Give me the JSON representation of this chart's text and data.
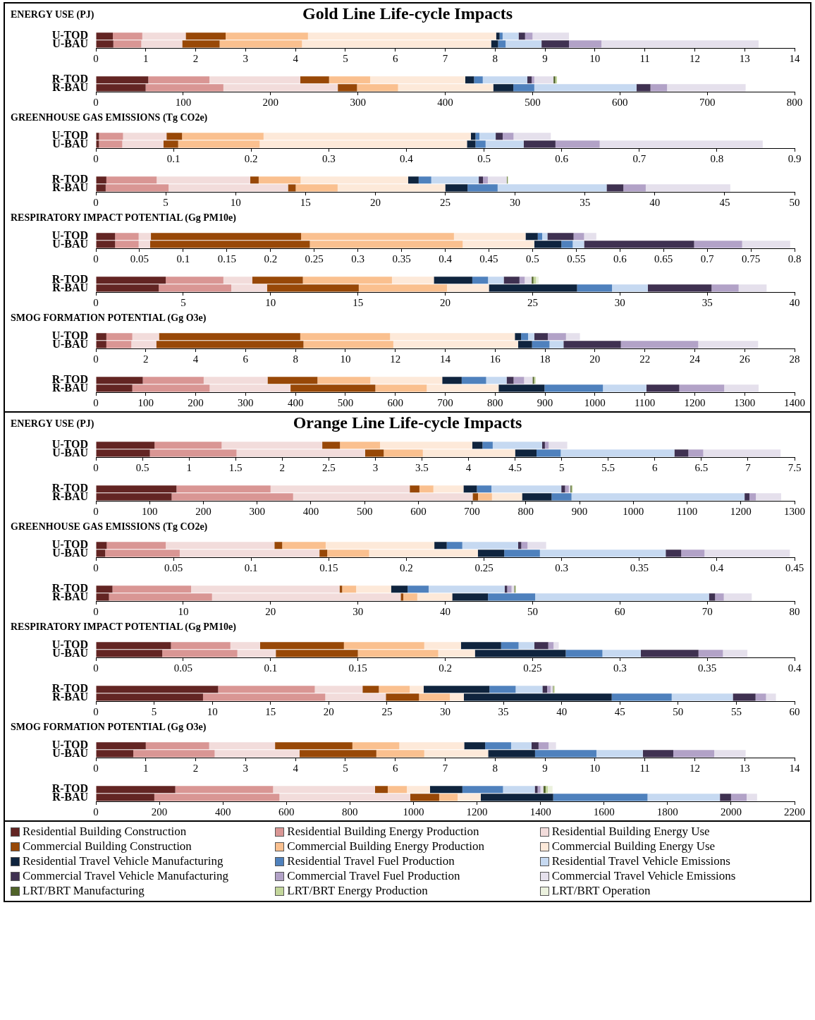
{
  "chart_data": [
    {
      "type": "bar",
      "orientation": "horizontal",
      "stacked": true,
      "title": "Gold Line Life-cycle Impacts",
      "subtitle": "ENERGY USE (PJ)",
      "categories": [
        "U-TOD",
        "U-BAU"
      ],
      "xlim": [
        0,
        14
      ],
      "xticks": [
        0,
        1,
        2,
        3,
        4,
        5,
        6,
        7,
        8,
        9,
        10,
        11,
        12,
        13,
        14
      ],
      "series": [
        {
          "color": "#632523",
          "values": [
            0.34,
            0.35
          ]
        },
        {
          "color": "#d99694",
          "values": [
            0.59,
            0.56
          ]
        },
        {
          "color": "#f2dcdb",
          "values": [
            0.87,
            0.82
          ]
        },
        {
          "color": "#984807",
          "values": [
            0.8,
            0.75
          ]
        },
        {
          "color": "#fac08f",
          "values": [
            1.65,
            1.65
          ]
        },
        {
          "color": "#fde9d9",
          "values": [
            3.77,
            3.79
          ]
        },
        {
          "color": "#0f243e",
          "values": [
            0.07,
            0.14
          ]
        },
        {
          "color": "#4f81bd",
          "values": [
            0.06,
            0.15
          ]
        },
        {
          "color": "#c6d9f1",
          "values": [
            0.32,
            0.72
          ]
        },
        {
          "color": "#3f3151",
          "values": [
            0.13,
            0.55
          ]
        },
        {
          "color": "#b2a2c7",
          "values": [
            0.15,
            0.65
          ]
        },
        {
          "color": "#e5e0ec",
          "values": [
            0.73,
            3.15
          ]
        }
      ]
    },
    {
      "type": "bar",
      "orientation": "horizontal",
      "stacked": true,
      "categories": [
        "R-TOD",
        "R-BAU"
      ],
      "xlim": [
        0,
        800
      ],
      "xticks": [
        0,
        100,
        200,
        300,
        400,
        500,
        600,
        700,
        800
      ],
      "series": [
        {
          "color": "#632523",
          "values": [
            60,
            57
          ]
        },
        {
          "color": "#d99694",
          "values": [
            70,
            89
          ]
        },
        {
          "color": "#f2dcdb",
          "values": [
            104,
            131
          ]
        },
        {
          "color": "#984807",
          "values": [
            33,
            22
          ]
        },
        {
          "color": "#fac08f",
          "values": [
            47,
            47
          ]
        },
        {
          "color": "#fde9d9",
          "values": [
            109,
            109
          ]
        },
        {
          "color": "#0f243e",
          "values": [
            10,
            23
          ]
        },
        {
          "color": "#4f81bd",
          "values": [
            10,
            24
          ]
        },
        {
          "color": "#c6d9f1",
          "values": [
            51,
            117
          ]
        },
        {
          "color": "#3f3151",
          "values": [
            5,
            16
          ]
        },
        {
          "color": "#b2a2c7",
          "values": [
            3,
            19
          ]
        },
        {
          "color": "#e5e0ec",
          "values": [
            22,
            90
          ]
        },
        {
          "color": "#4f6228",
          "values": [
            2,
            0
          ]
        },
        {
          "color": "#c3d69b",
          "values": [
            2,
            0
          ]
        }
      ]
    },
    {
      "type": "bar",
      "orientation": "horizontal",
      "stacked": true,
      "title": "GREENHOUSE GAS EMISSIONS (Tg CO2e)",
      "categories": [
        "U-TOD",
        "U-BAU"
      ],
      "xlim": [
        0,
        0.9
      ],
      "xticks": [
        0,
        0.1,
        0.2,
        0.3,
        0.4,
        0.5,
        0.6,
        0.7,
        0.8,
        0.9
      ],
      "series": [
        {
          "color": "#632523",
          "values": [
            0.004,
            0.004
          ]
        },
        {
          "color": "#d99694",
          "values": [
            0.031,
            0.03
          ]
        },
        {
          "color": "#f2dcdb",
          "values": [
            0.056,
            0.053
          ]
        },
        {
          "color": "#984807",
          "values": [
            0.02,
            0.019
          ]
        },
        {
          "color": "#fac08f",
          "values": [
            0.105,
            0.105
          ]
        },
        {
          "color": "#fde9d9",
          "values": [
            0.267,
            0.267
          ]
        },
        {
          "color": "#0f243e",
          "values": [
            0.006,
            0.011
          ]
        },
        {
          "color": "#4f81bd",
          "values": [
            0.005,
            0.013
          ]
        },
        {
          "color": "#c6d9f1",
          "values": [
            0.021,
            0.049
          ]
        },
        {
          "color": "#3f3151",
          "values": [
            0.009,
            0.041
          ]
        },
        {
          "color": "#b2a2c7",
          "values": [
            0.014,
            0.057
          ]
        },
        {
          "color": "#e5e0ec",
          "values": [
            0.048,
            0.21
          ]
        }
      ]
    },
    {
      "type": "bar",
      "orientation": "horizontal",
      "stacked": true,
      "categories": [
        "R-TOD",
        "R-BAU"
      ],
      "xlim": [
        0,
        50
      ],
      "xticks": [
        0,
        5,
        10,
        15,
        20,
        25,
        30,
        35,
        40,
        45,
        50
      ],
      "series": [
        {
          "color": "#632523",
          "values": [
            0.75,
            0.7
          ]
        },
        {
          "color": "#d99694",
          "values": [
            3.6,
            4.5
          ]
        },
        {
          "color": "#f2dcdb",
          "values": [
            6.7,
            8.55
          ]
        },
        {
          "color": "#984807",
          "values": [
            0.6,
            0.55
          ]
        },
        {
          "color": "#fac08f",
          "values": [
            3.0,
            3.0
          ]
        },
        {
          "color": "#fde9d9",
          "values": [
            7.7,
            7.7
          ]
        },
        {
          "color": "#0f243e",
          "values": [
            0.75,
            1.6
          ]
        },
        {
          "color": "#4f81bd",
          "values": [
            0.9,
            2.15
          ]
        },
        {
          "color": "#c6d9f1",
          "values": [
            3.4,
            7.8
          ]
        },
        {
          "color": "#3f3151",
          "values": [
            0.3,
            1.2
          ]
        },
        {
          "color": "#b2a2c7",
          "values": [
            0.35,
            1.6
          ]
        },
        {
          "color": "#e5e0ec",
          "values": [
            1.35,
            6.05
          ]
        },
        {
          "color": "#4f6228",
          "values": [
            0.05,
            0
          ]
        },
        {
          "color": "#c3d69b",
          "values": [
            0.05,
            0
          ]
        }
      ]
    },
    {
      "type": "bar",
      "orientation": "horizontal",
      "stacked": true,
      "title": "RESPIRATORY IMPACT POTENTIAL (Gg PM10e)",
      "categories": [
        "U-TOD",
        "U-BAU"
      ],
      "xlim": [
        0,
        0.8
      ],
      "xticks": [
        0,
        0.05,
        0.1,
        0.15,
        0.2,
        0.25,
        0.3,
        0.35,
        0.4,
        0.45,
        0.5,
        0.55,
        0.6,
        0.65,
        0.7,
        0.75,
        0.8
      ],
      "series": [
        {
          "color": "#632523",
          "values": [
            0.022,
            0.022
          ]
        },
        {
          "color": "#d99694",
          "values": [
            0.027,
            0.027
          ]
        },
        {
          "color": "#f2dcdb",
          "values": [
            0.014,
            0.013
          ]
        },
        {
          "color": "#984807",
          "values": [
            0.172,
            0.183
          ]
        },
        {
          "color": "#fac08f",
          "values": [
            0.175,
            0.175
          ]
        },
        {
          "color": "#fde9d9",
          "values": [
            0.082,
            0.082
          ]
        },
        {
          "color": "#0f243e",
          "values": [
            0.014,
            0.031
          ]
        },
        {
          "color": "#4f81bd",
          "values": [
            0.005,
            0.013
          ]
        },
        {
          "color": "#c6d9f1",
          "values": [
            0.006,
            0.013
          ]
        },
        {
          "color": "#3f3151",
          "values": [
            0.03,
            0.126
          ]
        },
        {
          "color": "#b2a2c7",
          "values": [
            0.012,
            0.055
          ]
        },
        {
          "color": "#e5e0ec",
          "values": [
            0.014,
            0.055
          ]
        }
      ]
    },
    {
      "type": "bar",
      "orientation": "horizontal",
      "stacked": true,
      "categories": [
        "R-TOD",
        "R-BAU"
      ],
      "xlim": [
        0,
        40
      ],
      "xticks": [
        0,
        5,
        10,
        15,
        20,
        25,
        30,
        35,
        40
      ],
      "series": [
        {
          "color": "#632523",
          "values": [
            4.0,
            3.6
          ]
        },
        {
          "color": "#d99694",
          "values": [
            3.3,
            4.15
          ]
        },
        {
          "color": "#f2dcdb",
          "values": [
            1.65,
            2.05
          ]
        },
        {
          "color": "#984807",
          "values": [
            2.9,
            5.25
          ]
        },
        {
          "color": "#fac08f",
          "values": [
            5.1,
            5.05
          ]
        },
        {
          "color": "#fde9d9",
          "values": [
            2.4,
            2.4
          ]
        },
        {
          "color": "#0f243e",
          "values": [
            2.2,
            5.05
          ]
        },
        {
          "color": "#4f81bd",
          "values": [
            0.9,
            2.0
          ]
        },
        {
          "color": "#c6d9f1",
          "values": [
            0.9,
            2.05
          ]
        },
        {
          "color": "#3f3151",
          "values": [
            0.9,
            3.65
          ]
        },
        {
          "color": "#b2a2c7",
          "values": [
            0.3,
            1.55
          ]
        },
        {
          "color": "#e5e0ec",
          "values": [
            0.4,
            1.6
          ]
        },
        {
          "color": "#4f6228",
          "values": [
            0.1,
            0
          ]
        },
        {
          "color": "#c3d69b",
          "values": [
            0.15,
            0
          ]
        },
        {
          "color": "#ebf1de",
          "values": [
            0.15,
            0
          ]
        }
      ]
    },
    {
      "type": "bar",
      "orientation": "horizontal",
      "stacked": true,
      "title": "SMOG FORMATION POTENTIAL (Gg O3e)",
      "categories": [
        "U-TOD",
        "U-BAU"
      ],
      "xlim": [
        0,
        28
      ],
      "xticks": [
        0,
        2,
        4,
        6,
        8,
        10,
        12,
        14,
        16,
        18,
        20,
        22,
        24,
        26,
        28
      ],
      "series": [
        {
          "color": "#632523",
          "values": [
            0.42,
            0.42
          ]
        },
        {
          "color": "#d99694",
          "values": [
            1.04,
            1.0
          ]
        },
        {
          "color": "#f2dcdb",
          "values": [
            1.07,
            1.0
          ]
        },
        {
          "color": "#984807",
          "values": [
            5.66,
            5.9
          ]
        },
        {
          "color": "#fac08f",
          "values": [
            3.6,
            3.6
          ]
        },
        {
          "color": "#fde9d9",
          "values": [
            5.0,
            5.0
          ]
        },
        {
          "color": "#0f243e",
          "values": [
            0.25,
            0.56
          ]
        },
        {
          "color": "#4f81bd",
          "values": [
            0.28,
            0.7
          ]
        },
        {
          "color": "#c6d9f1",
          "values": [
            0.25,
            0.56
          ]
        },
        {
          "color": "#3f3151",
          "values": [
            0.54,
            2.3
          ]
        },
        {
          "color": "#b2a2c7",
          "values": [
            0.73,
            3.1
          ]
        },
        {
          "color": "#e5e0ec",
          "values": [
            0.56,
            2.4
          ]
        }
      ]
    },
    {
      "type": "bar",
      "orientation": "horizontal",
      "stacked": true,
      "categories": [
        "R-TOD",
        "R-BAU"
      ],
      "xlim": [
        0,
        1400
      ],
      "xticks": [
        0,
        100,
        200,
        300,
        400,
        500,
        600,
        700,
        800,
        900,
        1000,
        1100,
        1200,
        1300,
        1400
      ],
      "series": [
        {
          "color": "#632523",
          "values": [
            94,
            73
          ]
        },
        {
          "color": "#d99694",
          "values": [
            122,
            155
          ]
        },
        {
          "color": "#f2dcdb",
          "values": [
            128,
            162
          ]
        },
        {
          "color": "#984807",
          "values": [
            100,
            170
          ]
        },
        {
          "color": "#fac08f",
          "values": [
            106,
            103
          ]
        },
        {
          "color": "#fde9d9",
          "values": [
            144,
            144
          ]
        },
        {
          "color": "#0f243e",
          "values": [
            39,
            92
          ]
        },
        {
          "color": "#4f81bd",
          "values": [
            49,
            117
          ]
        },
        {
          "color": "#c6d9f1",
          "values": [
            41,
            87
          ]
        },
        {
          "color": "#3f3151",
          "values": [
            14,
            66
          ]
        },
        {
          "color": "#b2a2c7",
          "values": [
            21,
            90
          ]
        },
        {
          "color": "#e5e0ec",
          "values": [
            17,
            69
          ]
        },
        {
          "color": "#4f6228",
          "values": [
            3,
            0
          ]
        },
        {
          "color": "#c3d69b",
          "values": [
            3,
            0
          ]
        }
      ]
    },
    {
      "type": "bar",
      "orientation": "horizontal",
      "stacked": true,
      "title": "Orange Line Life-cycle Impacts",
      "subtitle": "ENERGY USE (PJ)",
      "categories": [
        "U-TOD",
        "U-BAU"
      ],
      "xlim": [
        0,
        7.5
      ],
      "xticks": [
        0,
        0.5,
        1,
        1.5,
        2,
        2.5,
        3,
        3.5,
        4,
        4.5,
        5,
        5.5,
        6,
        6.5,
        7,
        7.5
      ],
      "series": [
        {
          "color": "#632523",
          "values": [
            0.63,
            0.58
          ]
        },
        {
          "color": "#d99694",
          "values": [
            0.72,
            0.93
          ]
        },
        {
          "color": "#f2dcdb",
          "values": [
            1.08,
            1.38
          ]
        },
        {
          "color": "#984807",
          "values": [
            0.19,
            0.2
          ]
        },
        {
          "color": "#fac08f",
          "values": [
            0.43,
            0.42
          ]
        },
        {
          "color": "#fde9d9",
          "values": [
            0.99,
            0.99
          ]
        },
        {
          "color": "#0f243e",
          "values": [
            0.11,
            0.23
          ]
        },
        {
          "color": "#4f81bd",
          "values": [
            0.11,
            0.26
          ]
        },
        {
          "color": "#c6d9f1",
          "values": [
            0.53,
            1.22
          ]
        },
        {
          "color": "#3f3151",
          "values": [
            0.03,
            0.15
          ]
        },
        {
          "color": "#b2a2c7",
          "values": [
            0.04,
            0.16
          ]
        },
        {
          "color": "#e5e0ec",
          "values": [
            0.2,
            0.83
          ]
        }
      ]
    },
    {
      "type": "bar",
      "orientation": "horizontal",
      "stacked": true,
      "categories": [
        "R-TOD",
        "R-BAU"
      ],
      "xlim": [
        0,
        1300
      ],
      "xticks": [
        0,
        100,
        200,
        300,
        400,
        500,
        600,
        700,
        800,
        900,
        1000,
        1100,
        1200,
        1300
      ],
      "series": [
        {
          "color": "#632523",
          "values": [
            150,
            141
          ]
        },
        {
          "color": "#d99694",
          "values": [
            175,
            226
          ]
        },
        {
          "color": "#f2dcdb",
          "values": [
            259,
            334
          ]
        },
        {
          "color": "#984807",
          "values": [
            18,
            10
          ]
        },
        {
          "color": "#fac08f",
          "values": [
            26,
            26
          ]
        },
        {
          "color": "#fde9d9",
          "values": [
            56,
            56
          ]
        },
        {
          "color": "#0f243e",
          "values": [
            25,
            55
          ]
        },
        {
          "color": "#4f81bd",
          "values": [
            27,
            37
          ]
        },
        {
          "color": "#c6d9f1",
          "values": [
            130,
            322
          ]
        },
        {
          "color": "#3f3151",
          "values": [
            7,
            9
          ]
        },
        {
          "color": "#b2a2c7",
          "values": [
            7,
            12
          ]
        },
        {
          "color": "#e5e0ec",
          "values": [
            3,
            47
          ]
        },
        {
          "color": "#4f6228",
          "values": [
            2,
            0
          ]
        },
        {
          "color": "#c3d69b",
          "values": [
            2,
            0
          ]
        }
      ]
    },
    {
      "type": "bar",
      "orientation": "horizontal",
      "stacked": true,
      "title": "GREENHOUSE GAS EMISSIONS (Tg CO2e)",
      "categories": [
        "U-TOD",
        "U-BAU"
      ],
      "xlim": [
        0,
        0.45
      ],
      "xticks": [
        0,
        0.05,
        0.1,
        0.15,
        0.2,
        0.25,
        0.3,
        0.35,
        0.4,
        0.45
      ],
      "series": [
        {
          "color": "#632523",
          "values": [
            0.007,
            0.006
          ]
        },
        {
          "color": "#d99694",
          "values": [
            0.038,
            0.048
          ]
        },
        {
          "color": "#f2dcdb",
          "values": [
            0.07,
            0.09
          ]
        },
        {
          "color": "#984807",
          "values": [
            0.005,
            0.005
          ]
        },
        {
          "color": "#fac08f",
          "values": [
            0.028,
            0.027
          ]
        },
        {
          "color": "#fde9d9",
          "values": [
            0.07,
            0.07
          ]
        },
        {
          "color": "#0f243e",
          "values": [
            0.008,
            0.017
          ]
        },
        {
          "color": "#4f81bd",
          "values": [
            0.01,
            0.023
          ]
        },
        {
          "color": "#c6d9f1",
          "values": [
            0.036,
            0.081
          ]
        },
        {
          "color": "#3f3151",
          "values": [
            0.002,
            0.01
          ]
        },
        {
          "color": "#b2a2c7",
          "values": [
            0.004,
            0.015
          ]
        },
        {
          "color": "#e5e0ec",
          "values": [
            0.012,
            0.055
          ]
        }
      ]
    },
    {
      "type": "bar",
      "orientation": "horizontal",
      "stacked": true,
      "categories": [
        "R-TOD",
        "R-BAU"
      ],
      "xlim": [
        0,
        80
      ],
      "xticks": [
        0,
        10,
        20,
        30,
        40,
        50,
        60,
        70,
        80
      ],
      "series": [
        {
          "color": "#632523",
          "values": [
            1.9,
            1.5
          ]
        },
        {
          "color": "#d99694",
          "values": [
            9.0,
            11.8
          ]
        },
        {
          "color": "#f2dcdb",
          "values": [
            17,
            21.6
          ]
        },
        {
          "color": "#984807",
          "values": [
            0.3,
            0.3
          ]
        },
        {
          "color": "#fac08f",
          "values": [
            1.6,
            1.6
          ]
        },
        {
          "color": "#fde9d9",
          "values": [
            4.0,
            4.0
          ]
        },
        {
          "color": "#0f243e",
          "values": [
            1.9,
            4.1
          ]
        },
        {
          "color": "#4f81bd",
          "values": [
            2.4,
            5.4
          ]
        },
        {
          "color": "#c6d9f1",
          "values": [
            8.7,
            19.9
          ]
        },
        {
          "color": "#3f3151",
          "values": [
            0.3,
            0.7
          ]
        },
        {
          "color": "#b2a2c7",
          "values": [
            0.5,
            1.0
          ]
        },
        {
          "color": "#e5e0ec",
          "values": [
            0.3,
            3.2
          ]
        },
        {
          "color": "#4f6228",
          "values": [
            0.1,
            0
          ]
        },
        {
          "color": "#c3d69b",
          "values": [
            0.1,
            0
          ]
        }
      ]
    },
    {
      "type": "bar",
      "orientation": "horizontal",
      "stacked": true,
      "title": "RESPIRATORY IMPACT POTENTIAL (Gg PM10e)",
      "categories": [
        "U-TOD",
        "U-BAU"
      ],
      "xlim": [
        0,
        0.4
      ],
      "xticks": [
        0,
        0.05,
        0.1,
        0.15,
        0.2,
        0.25,
        0.3,
        0.35,
        0.4
      ],
      "series": [
        {
          "color": "#632523",
          "values": [
            0.043,
            0.038
          ]
        },
        {
          "color": "#d99694",
          "values": [
            0.034,
            0.043
          ]
        },
        {
          "color": "#f2dcdb",
          "values": [
            0.017,
            0.022
          ]
        },
        {
          "color": "#984807",
          "values": [
            0.048,
            0.047
          ]
        },
        {
          "color": "#fac08f",
          "values": [
            0.046,
            0.046
          ]
        },
        {
          "color": "#fde9d9",
          "values": [
            0.021,
            0.021
          ]
        },
        {
          "color": "#0f243e",
          "values": [
            0.023,
            0.052
          ]
        },
        {
          "color": "#4f81bd",
          "values": [
            0.01,
            0.021
          ]
        },
        {
          "color": "#c6d9f1",
          "values": [
            0.009,
            0.022
          ]
        },
        {
          "color": "#3f3151",
          "values": [
            0.008,
            0.033
          ]
        },
        {
          "color": "#b2a2c7",
          "values": [
            0.003,
            0.014
          ]
        },
        {
          "color": "#e5e0ec",
          "values": [
            0.003,
            0.014
          ]
        }
      ]
    },
    {
      "type": "bar",
      "orientation": "horizontal",
      "stacked": true,
      "categories": [
        "R-TOD",
        "R-BAU"
      ],
      "xlim": [
        0,
        60
      ],
      "xticks": [
        0,
        5,
        10,
        15,
        20,
        25,
        30,
        35,
        40,
        45,
        50,
        55,
        60
      ],
      "series": [
        {
          "color": "#632523",
          "values": [
            10.5,
            9.2
          ]
        },
        {
          "color": "#d99694",
          "values": [
            8.3,
            10.5
          ]
        },
        {
          "color": "#f2dcdb",
          "values": [
            4.1,
            5.2
          ]
        },
        {
          "color": "#984807",
          "values": [
            1.4,
            2.85
          ]
        },
        {
          "color": "#fac08f",
          "values": [
            2.65,
            2.65
          ]
        },
        {
          "color": "#fde9d9",
          "values": [
            1.2,
            1.2
          ]
        },
        {
          "color": "#0f243e",
          "values": [
            5.65,
            12.7
          ]
        },
        {
          "color": "#4f81bd",
          "values": [
            2.25,
            5.15
          ]
        },
        {
          "color": "#c6d9f1",
          "values": [
            2.3,
            5.25
          ]
        },
        {
          "color": "#3f3151",
          "values": [
            0.4,
            1.95
          ]
        },
        {
          "color": "#b2a2c7",
          "values": [
            0.3,
            0.9
          ]
        },
        {
          "color": "#e5e0ec",
          "values": [
            0.2,
            0.85
          ]
        },
        {
          "color": "#4f6228",
          "values": [
            0.05,
            0
          ]
        },
        {
          "color": "#c3d69b",
          "values": [
            0.1,
            0
          ]
        }
      ]
    },
    {
      "type": "bar",
      "orientation": "horizontal",
      "stacked": true,
      "title": "SMOG FORMATION POTENTIAL (Gg O3e)",
      "categories": [
        "U-TOD",
        "U-BAU"
      ],
      "xlim": [
        0,
        14
      ],
      "xticks": [
        0,
        1,
        2,
        3,
        4,
        5,
        6,
        7,
        8,
        9,
        10,
        11,
        12,
        13,
        14
      ],
      "series": [
        {
          "color": "#632523",
          "values": [
            1.0,
            0.75
          ]
        },
        {
          "color": "#d99694",
          "values": [
            1.27,
            1.63
          ]
        },
        {
          "color": "#f2dcdb",
          "values": [
            1.32,
            1.7
          ]
        },
        {
          "color": "#984807",
          "values": [
            1.55,
            1.54
          ]
        },
        {
          "color": "#fac08f",
          "values": [
            0.94,
            0.96
          ]
        },
        {
          "color": "#fde9d9",
          "values": [
            1.3,
            1.28
          ]
        },
        {
          "color": "#0f243e",
          "values": [
            0.42,
            0.94
          ]
        },
        {
          "color": "#4f81bd",
          "values": [
            0.52,
            1.23
          ]
        },
        {
          "color": "#c6d9f1",
          "values": [
            0.41,
            0.93
          ]
        },
        {
          "color": "#3f3151",
          "values": [
            0.14,
            0.61
          ]
        },
        {
          "color": "#b2a2c7",
          "values": [
            0.2,
            0.82
          ]
        },
        {
          "color": "#e5e0ec",
          "values": [
            0.15,
            0.63
          ]
        }
      ]
    },
    {
      "type": "bar",
      "orientation": "horizontal",
      "stacked": true,
      "legend": "bottom",
      "categories": [
        "R-TOD",
        "R-BAU"
      ],
      "xlim": [
        0,
        2200
      ],
      "xticks": [
        0,
        200,
        400,
        600,
        800,
        1000,
        1200,
        1400,
        1600,
        1800,
        2000,
        2200
      ],
      "series": [
        {
          "name": "Residential Building Construction",
          "color": "#632523",
          "values": [
            250,
            184
          ]
        },
        {
          "name": "Residential Building Energy Production",
          "color": "#d99694",
          "values": [
            308,
            394
          ]
        },
        {
          "name": "Residential Building Energy Use",
          "color": "#f2dcdb",
          "values": [
            321,
            412
          ]
        },
        {
          "name": "Commercial Building Construction",
          "color": "#984807",
          "values": [
            40,
            91
          ]
        },
        {
          "name": "Commercial Building Energy Production",
          "color": "#fac08f",
          "values": [
            60,
            58
          ]
        },
        {
          "name": "Commercial Building Energy Use",
          "color": "#fde9d9",
          "values": [
            73,
            73
          ]
        },
        {
          "name": "Residential Travel Vehicle Manufacturing",
          "color": "#0f243e",
          "values": [
            102,
            228
          ]
        },
        {
          "name": "Residential Travel Fuel Production",
          "color": "#4f81bd",
          "values": [
            128,
            297
          ]
        },
        {
          "name": "Residential Travel Vehicle Emissions",
          "color": "#c6d9f1",
          "values": [
            100,
            228
          ]
        },
        {
          "name": "Commercial Travel Vehicle Manufacturing",
          "color": "#3f3151",
          "values": [
            9,
            35
          ]
        },
        {
          "name": "Commercial Travel Fuel Production",
          "color": "#b2a2c7",
          "values": [
            9,
            49
          ]
        },
        {
          "name": "Commercial Travel Vehicle Emissions",
          "color": "#e5e0ec",
          "values": [
            9,
            33
          ]
        },
        {
          "name": "LRT/BRT Manufacturing",
          "color": "#4f6228",
          "values": [
            7,
            0
          ]
        },
        {
          "name": "LRT/BRT Energy Production",
          "color": "#c3d69b",
          "values": [
            7,
            0
          ]
        },
        {
          "name": "LRT/BRT Operation",
          "color": "#ebf1de",
          "values": [
            15,
            0
          ]
        }
      ]
    }
  ]
}
